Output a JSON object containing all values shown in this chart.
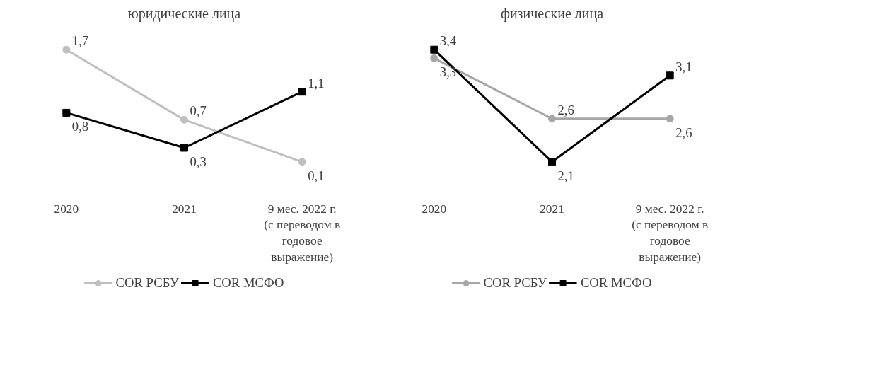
{
  "chart_data": [
    {
      "type": "line",
      "title": "юридические лица",
      "categories": [
        "2020",
        "2021",
        "9 мес. 2022 г. (с переводом в годовое выражение)"
      ],
      "legend": "bottom",
      "series": [
        {
          "name": "COR РСБУ",
          "color": "#bfbfbf",
          "marker": "circle",
          "values": [
            1.7,
            0.7,
            0.1
          ],
          "value_labels": [
            "1,7",
            "0,7",
            "0,1"
          ]
        },
        {
          "name": "COR МСФО",
          "color": "#000000",
          "marker": "square",
          "values": [
            0.8,
            0.3,
            1.1
          ],
          "value_labels": [
            "0,8",
            "0,3",
            "1,1"
          ]
        }
      ]
    },
    {
      "type": "line",
      "title": "физические лица",
      "categories": [
        "2020",
        "2021",
        "9 мес. 2022 г. (с переводом в годовое выражение)"
      ],
      "legend": "bottom",
      "series": [
        {
          "name": "COR РСБУ",
          "color": "#a6a6a6",
          "marker": "circle",
          "values": [
            3.3,
            2.6,
            2.6
          ],
          "value_labels": [
            "3,3",
            "2,6",
            "2,6"
          ]
        },
        {
          "name": "COR МСФО",
          "color": "#000000",
          "marker": "square",
          "values": [
            3.4,
            2.1,
            3.1
          ],
          "value_labels": [
            "3,4",
            "2,1",
            "3,1"
          ]
        }
      ]
    }
  ]
}
